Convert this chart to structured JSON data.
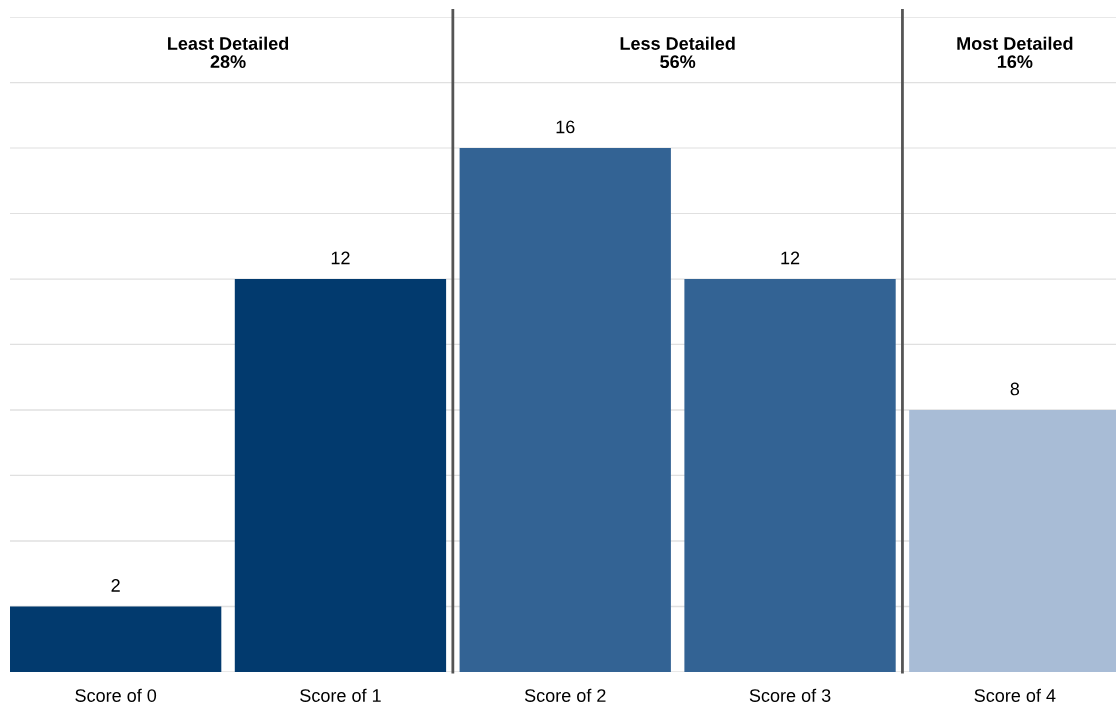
{
  "chart_data": {
    "type": "bar",
    "categories": [
      "Score of 0",
      "Score of 1",
      "Score of 2",
      "Score of 3",
      "Score of 4"
    ],
    "values": [
      2,
      12,
      16,
      12,
      8
    ],
    "colors": [
      "#023a6e",
      "#023a6e",
      "#336394",
      "#336394",
      "#a8bcd6"
    ],
    "data_labels": true,
    "ylim": [
      0,
      20
    ],
    "yticks": [
      {
        "value": 0,
        "label": null
      },
      {
        "value": 2,
        "label": null
      },
      {
        "value": 4,
        "label": null
      },
      {
        "value": 6,
        "label": null
      },
      {
        "value": 8,
        "label": null
      },
      {
        "value": 10,
        "label": null
      },
      {
        "value": 12,
        "label": null
      },
      {
        "value": 14,
        "label": null
      },
      {
        "value": 16,
        "label": null
      },
      {
        "value": 18,
        "label": null
      },
      {
        "value": 20,
        "label": null
      }
    ],
    "tick_labels": "x",
    "grid": "y",
    "annotations": [
      "Least Detailed\n28%",
      "Less Detailed\n56%",
      "Most Detailed\n16%"
    ]
  }
}
